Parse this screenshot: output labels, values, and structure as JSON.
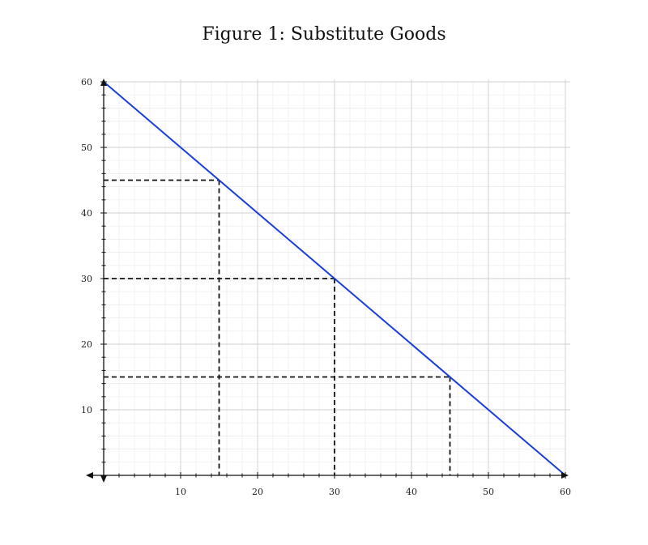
{
  "figure": {
    "title": "Figure 1:  Substitute Goods"
  },
  "colors": {
    "line": "#1a3fd6",
    "dashed": "#111111",
    "axis": "#111111",
    "major_grid": "#cfcfcf",
    "minor_grid": "#ececec"
  },
  "chart_data": {
    "type": "line",
    "title": "Figure 1:  Substitute Goods",
    "xlabel": "",
    "ylabel": "",
    "xlim": [
      0,
      60
    ],
    "ylim": [
      0,
      60
    ],
    "x_ticks": [
      10,
      20,
      30,
      40,
      50,
      60
    ],
    "y_ticks": [
      10,
      20,
      30,
      40,
      50,
      60
    ],
    "grid": true,
    "series": [
      {
        "points": [
          [
            0,
            60
          ],
          [
            60,
            0
          ]
        ]
      }
    ],
    "reference_points": [
      {
        "x": 15,
        "y": 45
      },
      {
        "x": 30,
        "y": 30
      },
      {
        "x": 45,
        "y": 15
      }
    ]
  }
}
